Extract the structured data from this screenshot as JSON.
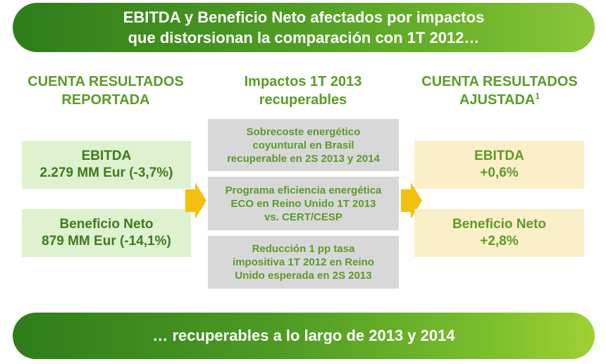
{
  "header": {
    "line1": "EBITDA y Beneficio Neto afectados por impactos",
    "line2": "que distorsionan la comparación con 1T 2012…"
  },
  "left_column": {
    "heading_line1": "CUENTA RESULTADOS",
    "heading_line2": "REPORTADA",
    "ebitda_label": "EBITDA",
    "ebitda_value": "2.279 MM Eur (-3,7%)",
    "net_label": "Beneficio Neto",
    "net_value": "879 MM Eur (-14,1%)"
  },
  "middle_column": {
    "heading_line1": "Impactos 1T 2013",
    "heading_line2": "recuperables",
    "impacts": [
      {
        "lines": [
          "Sobrecoste energético",
          "coyuntural en Brasil",
          "recuperable en 2S 2013 y 2014"
        ]
      },
      {
        "lines": [
          "Programa eficiencia energética",
          "ECO en Reino Unido 1T 2013",
          "vs. CERT/CESP"
        ]
      },
      {
        "lines": [
          "Reducción 1 pp tasa",
          "impositiva 1T 2012 en Reino",
          "Unido esperada en 2S 2013"
        ]
      }
    ]
  },
  "right_column": {
    "heading_line1": "CUENTA RESULTADOS",
    "heading_line2": "AJUSTADA",
    "footnote_mark": "1",
    "ebitda_label": "EBITDA",
    "ebitda_value": "+0,6%",
    "net_label": "Beneficio Neto",
    "net_value": "+2,8%"
  },
  "footer": {
    "text": "… recuperables a lo largo de 2013 y 2014"
  },
  "colors": {
    "banner_green": "#3f8c1f",
    "heading_green": "#5c9a2a",
    "left_box_bg": "#dff2cf",
    "right_box_bg": "#fbefc9",
    "middle_box_bg": "#d8d8d8",
    "arrow_yellow": "#f2c010"
  }
}
